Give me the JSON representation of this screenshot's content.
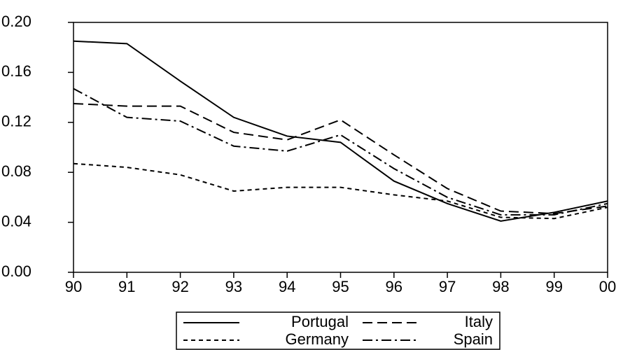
{
  "chart_data": {
    "type": "line",
    "categories": [
      "90",
      "91",
      "92",
      "93",
      "94",
      "95",
      "96",
      "97",
      "98",
      "99",
      "00"
    ],
    "series": [
      {
        "name": "Portugal",
        "color": "#000000",
        "linestyle": "solid",
        "values": [
          0.185,
          0.183,
          0.153,
          0.124,
          0.109,
          0.104,
          0.073,
          0.055,
          0.041,
          0.048,
          0.057
        ]
      },
      {
        "name": "Italy",
        "color": "#000000",
        "linestyle": "dashed",
        "values": [
          0.135,
          0.133,
          0.133,
          0.112,
          0.106,
          0.122,
          0.094,
          0.067,
          0.049,
          0.047,
          0.053
        ]
      },
      {
        "name": "Germany",
        "color": "#000000",
        "linestyle": "dotted",
        "values": [
          0.087,
          0.084,
          0.078,
          0.065,
          0.068,
          0.068,
          0.062,
          0.057,
          0.044,
          0.043,
          0.052
        ]
      },
      {
        "name": "Spain",
        "color": "#000000",
        "linestyle": "dashdot",
        "values": [
          0.147,
          0.124,
          0.121,
          0.101,
          0.097,
          0.11,
          0.083,
          0.06,
          0.046,
          0.046,
          0.055
        ]
      }
    ],
    "ylim": [
      0,
      0.2
    ],
    "yticks": [
      {
        "value": 0,
        "label": "0.00"
      },
      0.04,
      0.08,
      0.12,
      0.16,
      {
        "value": 0.2,
        "label": "0.20"
      }
    ],
    "grid": false,
    "legend": "bottom"
  }
}
